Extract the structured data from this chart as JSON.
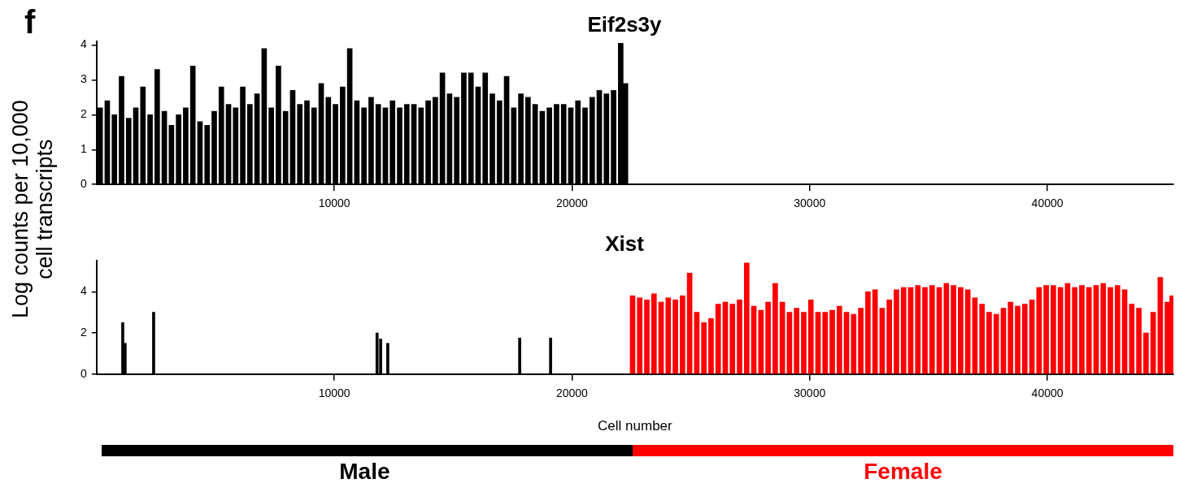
{
  "chart_data": [
    {
      "type": "bar",
      "title": "Eif2s3y",
      "ylabel": "Log counts per 10,000 cell transcripts",
      "annotations": [
        "f"
      ],
      "xlim": [
        0,
        45300
      ],
      "xticks": [
        10000,
        20000,
        30000,
        40000
      ],
      "ylim": [
        0,
        4.1
      ],
      "yticks": [
        0,
        1,
        2,
        3,
        4
      ],
      "series": [
        {
          "color": "#000000",
          "x": [
            150,
            450,
            750,
            1050,
            1350,
            1650,
            1950,
            2250,
            2550,
            2850,
            3150,
            3450,
            3750,
            4050,
            4350,
            4650,
            4950,
            5250,
            5550,
            5850,
            6150,
            6450,
            6750,
            7050,
            7350,
            7650,
            7950,
            8250,
            8550,
            8850,
            9150,
            9450,
            9750,
            10050,
            10350,
            10650,
            10950,
            11250,
            11550,
            11850,
            12150,
            12450,
            12750,
            13050,
            13350,
            13650,
            13950,
            14250,
            14550,
            14850,
            15150,
            15450,
            15750,
            16050,
            16350,
            16650,
            16950,
            17250,
            17550,
            17850,
            18150,
            18450,
            18750,
            19050,
            19350,
            19650,
            19950,
            20250,
            20550,
            20850,
            21150,
            21450,
            21750,
            22050,
            22250
          ],
          "values": [
            2.2,
            2.4,
            2.0,
            3.1,
            1.9,
            2.2,
            2.8,
            2.0,
            3.3,
            2.1,
            1.7,
            2.0,
            2.2,
            3.4,
            1.8,
            1.7,
            2.1,
            2.8,
            2.3,
            2.2,
            2.8,
            2.3,
            2.6,
            3.9,
            2.2,
            3.4,
            2.1,
            2.7,
            2.3,
            2.4,
            2.2,
            2.9,
            2.5,
            2.3,
            2.8,
            3.9,
            2.4,
            2.2,
            2.5,
            2.3,
            2.2,
            2.4,
            2.2,
            2.3,
            2.3,
            2.2,
            2.4,
            2.5,
            3.2,
            2.6,
            2.5,
            3.2,
            3.2,
            2.8,
            3.2,
            2.6,
            2.4,
            3.1,
            2.2,
            2.6,
            2.5,
            2.3,
            2.1,
            2.2,
            2.3,
            2.3,
            2.2,
            2.4,
            2.2,
            2.5,
            2.7,
            2.6,
            2.7,
            4.05,
            2.9
          ]
        }
      ]
    },
    {
      "type": "bar",
      "title": "Xist",
      "xlabel": "Cell number",
      "xlim": [
        0,
        45300
      ],
      "xticks": [
        10000,
        20000,
        30000,
        40000
      ],
      "ylim": [
        0,
        5.5
      ],
      "yticks": [
        0,
        2,
        4
      ],
      "annotations": [
        "Male",
        "Female"
      ],
      "series": [
        {
          "color": "#000000",
          "x": [
            1100,
            1200,
            2400,
            11800,
            11950,
            12250,
            17800,
            19100
          ],
          "values": [
            2.5,
            1.5,
            3.0,
            2.0,
            1.7,
            1.5,
            1.75,
            1.75
          ]
        },
        {
          "color": "#ff0000",
          "x": [
            22550,
            22850,
            23150,
            23450,
            23750,
            24050,
            24350,
            24650,
            24950,
            25250,
            25550,
            25850,
            26150,
            26450,
            26750,
            27050,
            27350,
            27650,
            27950,
            28250,
            28550,
            28850,
            29150,
            29450,
            29750,
            30050,
            30350,
            30650,
            30950,
            31250,
            31550,
            31850,
            32150,
            32450,
            32750,
            33050,
            33350,
            33650,
            33950,
            34250,
            34550,
            34850,
            35150,
            35450,
            35750,
            36050,
            36350,
            36650,
            36950,
            37250,
            37550,
            37850,
            38150,
            38450,
            38750,
            39050,
            39350,
            39650,
            39950,
            40250,
            40550,
            40850,
            41150,
            41450,
            41750,
            42050,
            42350,
            42650,
            42950,
            43250,
            43550,
            43850,
            44150,
            44450,
            44750,
            45050,
            45250
          ],
          "values": [
            3.8,
            3.7,
            3.6,
            3.9,
            3.5,
            3.7,
            3.6,
            3.8,
            4.9,
            3.0,
            2.5,
            2.7,
            3.4,
            3.5,
            3.4,
            3.6,
            5.4,
            3.3,
            3.1,
            3.5,
            4.4,
            3.5,
            3.0,
            3.2,
            3.0,
            3.6,
            3.0,
            3.0,
            3.1,
            3.3,
            3.0,
            2.9,
            3.2,
            4.0,
            4.1,
            3.2,
            3.6,
            4.1,
            4.2,
            4.2,
            4.3,
            4.2,
            4.3,
            4.2,
            4.4,
            4.3,
            4.2,
            4.1,
            3.7,
            3.4,
            3.0,
            2.9,
            3.2,
            3.5,
            3.3,
            3.4,
            3.6,
            4.2,
            4.3,
            4.3,
            4.2,
            4.4,
            4.2,
            4.3,
            4.2,
            4.3,
            4.4,
            4.2,
            4.3,
            4.1,
            3.4,
            3.2,
            2.0,
            3.0,
            4.7,
            3.5,
            3.8
          ]
        }
      ]
    }
  ]
}
